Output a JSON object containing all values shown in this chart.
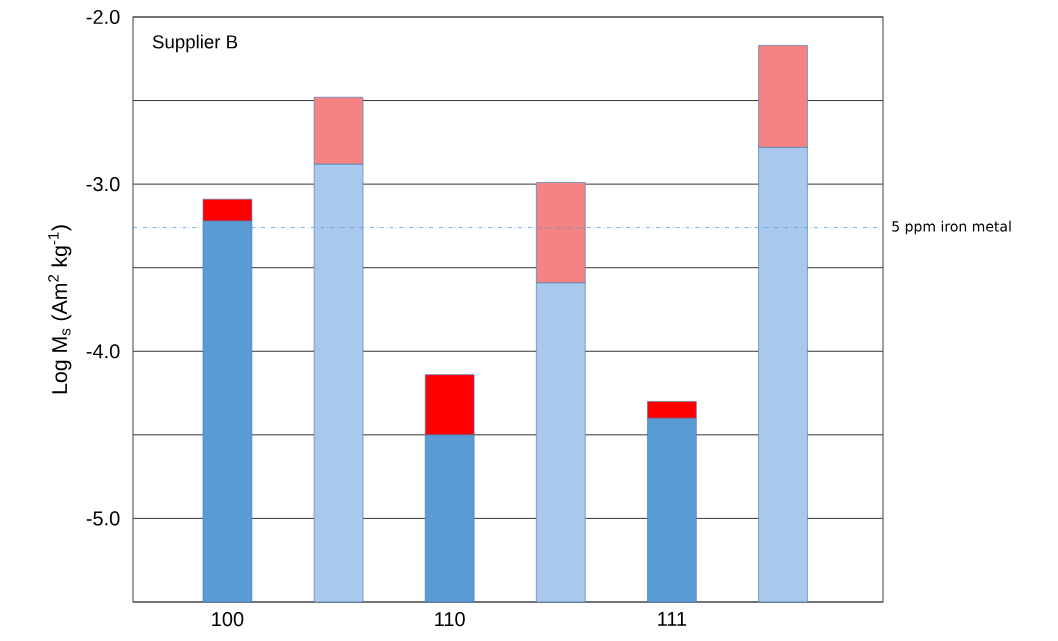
{
  "chart_data": {
    "type": "bar",
    "ylabel": "Log M$_{s}$ (Am$^{2}$ kg$^{-1}$)",
    "annotations": [
      "Supplier B"
    ],
    "categories": [
      "100",
      null,
      "110",
      null,
      "111",
      null
    ],
    "series": [
      {
        "colors": [
          "#5b9bd5",
          "#a9c9ec",
          "#5b9bd5",
          "#a9c9ec",
          "#5b9bd5",
          "#a9c9ec"
        ],
        "base": [
          -5.5,
          -5.5,
          -5.5,
          -5.5,
          -5.5,
          -5.5
        ],
        "values": [
          2.28,
          2.62,
          1.0,
          1.91,
          1.1,
          2.72
        ]
      },
      {
        "colors": [
          "#ff0000",
          "#f58383",
          "#ff0000",
          "#f58383",
          "#ff0000",
          "#f58383"
        ],
        "base": [
          -3.22,
          -2.88,
          -4.5,
          -3.59,
          -4.4,
          -2.78
        ],
        "values": [
          0.13,
          0.4,
          0.36,
          0.6,
          0.1,
          0.61
        ]
      }
    ],
    "ylim": [
      -5.5,
      -2.0
    ],
    "yticks": [
      {
        "value": -5.5,
        "label": null
      },
      {
        "value": -5.0,
        "label": "-5.0"
      },
      {
        "value": -4.5,
        "label": null
      },
      {
        "value": -4.0,
        "label": "-4.0"
      },
      {
        "value": -3.5,
        "label": null
      },
      {
        "value": -3.0,
        "label": "-3.0"
      },
      {
        "value": -2.5,
        "label": null
      },
      {
        "value": -2.0,
        "label": "-2.0"
      }
    ],
    "grid": "y",
    "ref_lines": [
      {
        "axis": "y",
        "value": -3.26,
        "label": "5 ppm iron metal",
        "color": "#5b9bd5",
        "line_style": "dashed"
      }
    ]
  }
}
